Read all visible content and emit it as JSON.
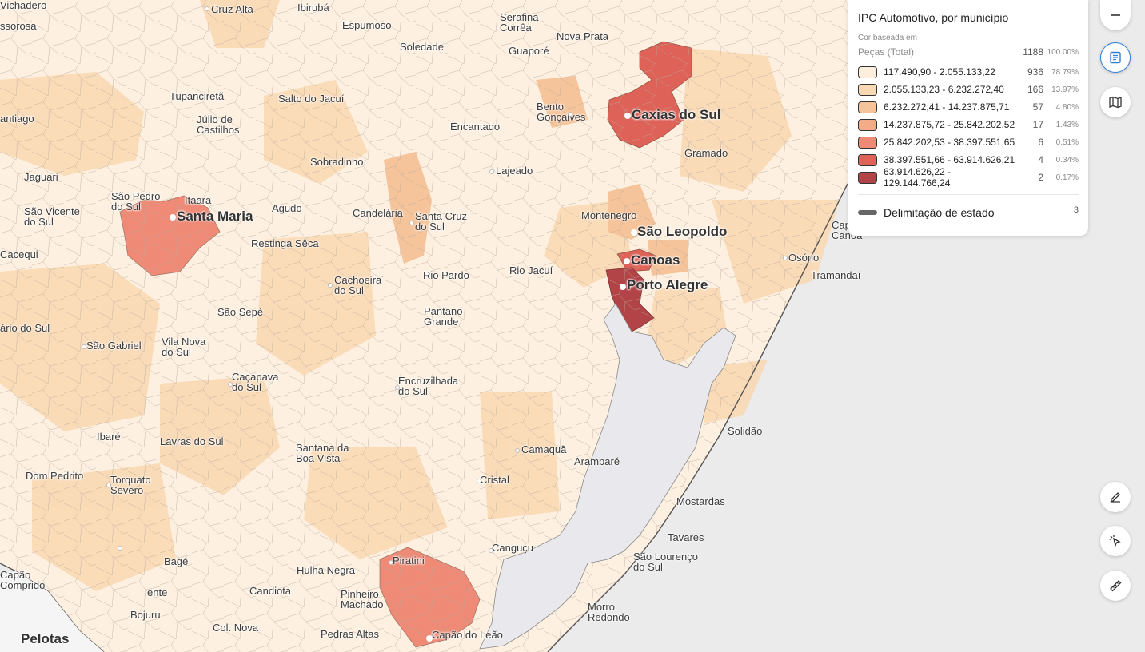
{
  "legend": {
    "title": "IPC Automotivo, por município",
    "color_based_on": "Cor baseada em",
    "metric": "Peças (Total)",
    "total_count": "1188",
    "total_pct": "100.00%",
    "classes": [
      {
        "range": "117.490,90 - 2.055.133,22",
        "count": "936",
        "pct": "78.79%",
        "color": "#fdeedd"
      },
      {
        "range": "2.055.133,23 - 6.232.272,40",
        "count": "166",
        "pct": "13.97%",
        "color": "#f9d9b4"
      },
      {
        "range": "6.232.272,41 - 14.237.875,71",
        "count": "57",
        "pct": "4.80%",
        "color": "#f6c49a"
      },
      {
        "range": "14.237.875,72 - 25.842.202,52",
        "count": "17",
        "pct": "1.43%",
        "color": "#f4ab88"
      },
      {
        "range": "25.842.202,53 - 38.397.551,65",
        "count": "6",
        "pct": "0.51%",
        "color": "#ee8a76"
      },
      {
        "range": "38.397.551,66 - 63.914.626,21",
        "count": "4",
        "pct": "0.34%",
        "color": "#de6257"
      },
      {
        "range": "63.914.626,22 - 129.144.766,24",
        "count": "2",
        "pct": "0.17%",
        "color": "#b24448"
      }
    ],
    "border_label": "Delimitação de estado",
    "border_count": "3"
  },
  "toolbar": {
    "zoom_out_icon": "minus-icon",
    "legend_icon": "list-icon",
    "basemap_icon": "map-icon",
    "draw_icon": "edit-shape-icon",
    "select_icon": "select-pointer-icon",
    "measure_icon": "ruler-icon"
  },
  "places": [
    {
      "name": "Cruz Alta",
      "big": false
    },
    {
      "name": "Ibirubá",
      "big": false
    },
    {
      "name": "Espumoso",
      "big": false
    },
    {
      "name": "Soledade",
      "big": false
    },
    {
      "name": "Serafina\nCorrêa",
      "big": false
    },
    {
      "name": "Nova Prata",
      "big": false
    },
    {
      "name": "Guaporé",
      "big": false
    },
    {
      "name": "ssorosa",
      "big": false
    },
    {
      "name": "Tupanciretã",
      "big": false
    },
    {
      "name": "Salto do Jacuí",
      "big": false
    },
    {
      "name": "Júlio de\nCastilhos",
      "big": false
    },
    {
      "name": "Bento\nGonçalves",
      "big": false
    },
    {
      "name": "Caxias do Sul",
      "big": true
    },
    {
      "name": "antiago",
      "big": false
    },
    {
      "name": "Encantado",
      "big": false
    },
    {
      "name": "Jaguari",
      "big": false
    },
    {
      "name": "Sobradinho",
      "big": false
    },
    {
      "name": "Gramado",
      "big": false
    },
    {
      "name": "Lajeado",
      "big": false
    },
    {
      "name": "São Pedro\ndo Sul",
      "big": false
    },
    {
      "name": "Itaara",
      "big": false
    },
    {
      "name": "São Vicente\ndo Sul",
      "big": false
    },
    {
      "name": "Santa Maria",
      "big": true
    },
    {
      "name": "Agudo",
      "big": false
    },
    {
      "name": "Candelária",
      "big": false
    },
    {
      "name": "Santa Cruz\ndo Sul",
      "big": false
    },
    {
      "name": "Montenegro",
      "big": false
    },
    {
      "name": "São Leopoldo",
      "big": true
    },
    {
      "name": "Capão da\nCanoa",
      "big": false
    },
    {
      "name": "Restinga Sêca",
      "big": false
    },
    {
      "name": "Cacequi",
      "big": false
    },
    {
      "name": "Osório",
      "big": false
    },
    {
      "name": "Canoas",
      "big": true
    },
    {
      "name": "Rio Jacuí",
      "big": false
    },
    {
      "name": "Rio Pardo",
      "big": false
    },
    {
      "name": "Tramandaí",
      "big": false
    },
    {
      "name": "Cachoeira\ndo Sul",
      "big": false
    },
    {
      "name": "Porto Alegre",
      "big": true
    },
    {
      "name": "São Sepé",
      "big": false
    },
    {
      "name": "Pantano\nGrande",
      "big": false
    },
    {
      "name": "ário do Sul",
      "big": false
    },
    {
      "name": "São Gabriel",
      "big": false
    },
    {
      "name": "Vila Nova\ndo Sul",
      "big": false
    },
    {
      "name": "Caçapava\ndo Sul",
      "big": false
    },
    {
      "name": "Encruzilhada\ndo Sul",
      "big": false
    },
    {
      "name": "Solidão",
      "big": false
    },
    {
      "name": "Ibaré",
      "big": false
    },
    {
      "name": "Lavras do Sul",
      "big": false
    },
    {
      "name": "Santana da\nBoa Vista",
      "big": false
    },
    {
      "name": "Camaquã",
      "big": false
    },
    {
      "name": "Arambaré",
      "big": false
    },
    {
      "name": "Dom Pedrito",
      "big": false
    },
    {
      "name": "Torquato\nSevero",
      "big": false
    },
    {
      "name": "Cristal",
      "big": false
    },
    {
      "name": "Mostardas",
      "big": false
    },
    {
      "name": "Tavares",
      "big": false
    },
    {
      "name": "Bagé",
      "big": false
    },
    {
      "name": "Hulha Negra",
      "big": false
    },
    {
      "name": "Piratini",
      "big": false
    },
    {
      "name": "Canguçu",
      "big": false
    },
    {
      "name": "São Lourenço\ndo Sul",
      "big": false
    },
    {
      "name": "Capão\nComprido",
      "big": false
    },
    {
      "name": "ente",
      "big": false
    },
    {
      "name": "Candiota",
      "big": false
    },
    {
      "name": "Pinheiro\nMachado",
      "big": false
    },
    {
      "name": "Morro\nRedondo",
      "big": false
    },
    {
      "name": "Bojuru",
      "big": false
    },
    {
      "name": "Col. Nova",
      "big": false
    },
    {
      "name": "Pedras Altas",
      "big": false
    },
    {
      "name": "Capão do Leão",
      "big": false
    },
    {
      "name": "Pelotas",
      "big": true
    },
    {
      "name": "Vichadero",
      "big": false
    }
  ]
}
